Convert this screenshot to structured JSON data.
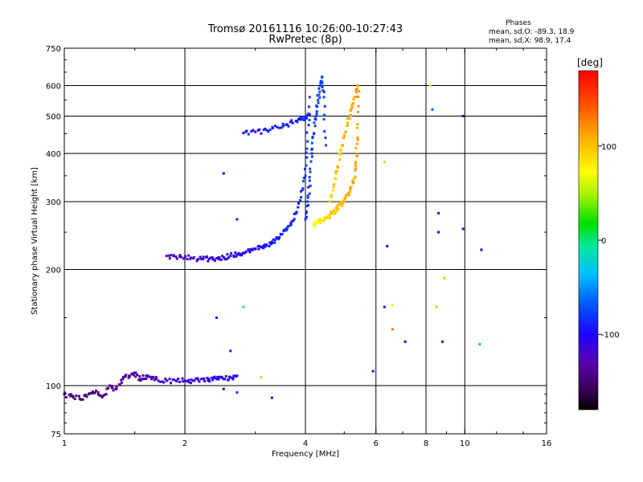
{
  "chart_data": {
    "type": "scatter",
    "title_line1": "Tromsø 20161116 10:26:00-10:27:43",
    "title_line2": "RwPretec (8p)",
    "stats": {
      "heading": "Phases",
      "line_o": "mean, sd,O: -89.3, 18.9",
      "line_x": "mean, sd,X:  98.9, 17.4"
    },
    "xlabel": "Frequency [MHz]",
    "ylabel": "Stationary phase Virtual Height [km]",
    "x_scale": "log2",
    "y_scale": "log",
    "xlim": [
      1,
      16
    ],
    "ylim": [
      75,
      750
    ],
    "x_ticks": [
      1,
      2,
      4,
      6,
      8,
      10,
      16
    ],
    "y_ticks": [
      75,
      100,
      200,
      300,
      400,
      500,
      600,
      750
    ],
    "x_grid": [
      2,
      4,
      6,
      8,
      10
    ],
    "y_grid": [
      100,
      200,
      300,
      400,
      500,
      600
    ],
    "colorbar": {
      "label": "[deg]",
      "range": [
        -180,
        180
      ],
      "ticks": [
        100,
        0,
        -100
      ]
    },
    "series": [
      {
        "mode": "O",
        "traces": [
          {
            "x": [
              1.0,
              1.05,
              1.1,
              1.15,
              1.2,
              1.25,
              1.3,
              1.35,
              1.4,
              1.45,
              1.5,
              1.55,
              1.6,
              1.65,
              1.7,
              1.8,
              1.9,
              2.0,
              2.1,
              2.2,
              2.3,
              2.4,
              2.5,
              2.6,
              2.7
            ],
            "y": [
              95,
              94,
              92,
              95,
              97,
              94,
              100,
              98,
              104,
              106,
              108,
              104,
              106,
              104,
              104,
              103,
              103,
              103,
              103,
              104,
              104,
              104,
              104,
              105,
              106
            ],
            "phase": [
              -130,
              -145,
              -150,
              -150,
              -145,
              -145,
              -140,
              -140,
              -135,
              -135,
              -135,
              -130,
              -125,
              -120,
              -120,
              -115,
              -115,
              -110,
              -110,
              -110,
              -105,
              -105,
              -105,
              -100,
              -100
            ]
          },
          {
            "x": [
              1.8,
              1.9,
              2.0,
              2.1,
              2.2,
              2.3,
              2.4,
              2.5,
              2.6,
              2.7,
              2.8,
              2.9,
              3.0,
              3.1,
              3.2,
              3.3,
              3.4,
              3.5,
              3.6,
              3.7,
              3.8,
              3.9,
              4.0,
              4.05,
              4.1
            ],
            "y": [
              217,
              216,
              215,
              214,
              213,
              213,
              214,
              215,
              217,
              219,
              221,
              223,
              226,
              229,
              232,
              236,
              241,
              247,
              255,
              266,
              282,
              308,
              350,
              430,
              560
            ],
            "phase": [
              -125,
              -120,
              -120,
              -115,
              -115,
              -115,
              -110,
              -110,
              -110,
              -105,
              -105,
              -105,
              -100,
              -100,
              -95,
              -95,
              -95,
              -90,
              -90,
              -88,
              -85,
              -85,
              -80,
              -80,
              -78
            ]
          },
          {
            "x": [
              2.8,
              3.0,
              3.2,
              3.4,
              3.6,
              3.8,
              3.9,
              4.0,
              4.1
            ],
            "y": [
              452,
              455,
              460,
              468,
              476,
              486,
              492,
              498,
              505
            ],
            "phase": [
              -95,
              -95,
              -92,
              -90,
              -90,
              -88,
              -88,
              -86,
              -85
            ]
          },
          {
            "x": [
              4.0,
              4.05,
              4.1,
              4.15,
              4.2,
              4.25,
              4.3,
              4.35,
              4.4,
              4.45,
              4.5
            ],
            "y": [
              270,
              300,
              340,
              400,
              450,
              500,
              550,
              600,
              630,
              560,
              420
            ],
            "phase": [
              -82,
              -82,
              -80,
              -80,
              -78,
              -78,
              -76,
              -76,
              -75,
              -75,
              -74
            ]
          }
        ]
      },
      {
        "mode": "X",
        "traces": [
          {
            "x": [
              4.2,
              4.3,
              4.4,
              4.5,
              4.6,
              4.7,
              4.8,
              4.9,
              5.0,
              5.1,
              5.2,
              5.3,
              5.35,
              5.4,
              5.45
            ],
            "y": [
              262,
              265,
              268,
              272,
              277,
              282,
              288,
              294,
              302,
              312,
              326,
              345,
              380,
              440,
              580
            ],
            "phase": [
              70,
              75,
              80,
              85,
              90,
              95,
              100,
              100,
              105,
              105,
              110,
              110,
              112,
              115,
              115
            ]
          },
          {
            "x": [
              4.6,
              4.7,
              4.8,
              4.9,
              5.0,
              5.1,
              5.2,
              5.3,
              5.4
            ],
            "y": [
              300,
              330,
              360,
              400,
              440,
              480,
              520,
              560,
              600
            ],
            "phase": [
              95,
              95,
              100,
              100,
              105,
              108,
              110,
              112,
              115
            ]
          }
        ]
      },
      {
        "mode": "scattered",
        "points": [
          {
            "x": 2.5,
            "y": 355,
            "phase": -100
          },
          {
            "x": 2.7,
            "y": 270,
            "phase": -90
          },
          {
            "x": 2.8,
            "y": 160,
            "phase": -10
          },
          {
            "x": 3.1,
            "y": 105,
            "phase": 100
          },
          {
            "x": 3.3,
            "y": 93,
            "phase": -90
          },
          {
            "x": 6.3,
            "y": 380,
            "phase": 100
          },
          {
            "x": 6.3,
            "y": 160,
            "phase": -100
          },
          {
            "x": 6.6,
            "y": 162,
            "phase": 80
          },
          {
            "x": 6.6,
            "y": 140,
            "phase": 130
          },
          {
            "x": 6.4,
            "y": 230,
            "phase": -100
          },
          {
            "x": 7.1,
            "y": 130,
            "phase": -100
          },
          {
            "x": 8.2,
            "y": 600,
            "phase": 80
          },
          {
            "x": 8.3,
            "y": 520,
            "phase": -60
          },
          {
            "x": 8.6,
            "y": 280,
            "phase": -100
          },
          {
            "x": 8.6,
            "y": 250,
            "phase": -100
          },
          {
            "x": 8.5,
            "y": 160,
            "phase": 100
          },
          {
            "x": 8.9,
            "y": 190,
            "phase": 100
          },
          {
            "x": 8.8,
            "y": 130,
            "phase": -110
          },
          {
            "x": 9.9,
            "y": 500,
            "phase": -110
          },
          {
            "x": 9.9,
            "y": 255,
            "phase": -110
          },
          {
            "x": 11.0,
            "y": 225,
            "phase": -110
          },
          {
            "x": 10.9,
            "y": 128,
            "phase": -40
          },
          {
            "x": 5.9,
            "y": 109,
            "phase": -110
          },
          {
            "x": 2.4,
            "y": 150,
            "phase": -100
          },
          {
            "x": 2.5,
            "y": 98,
            "phase": -100
          },
          {
            "x": 2.7,
            "y": 96,
            "phase": -80
          },
          {
            "x": 2.6,
            "y": 123,
            "phase": -90
          }
        ]
      }
    ]
  }
}
